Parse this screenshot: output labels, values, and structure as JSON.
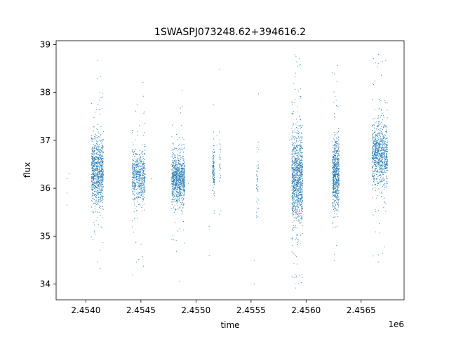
{
  "chart_data": {
    "type": "scatter",
    "title": "1SWASPJ073248.62+394616.2",
    "xlabel": "time",
    "ylabel": "flux",
    "x_offset_label": "1e6",
    "x_scale": 1000000,
    "xlim": [
      2.45373,
      2.45689
    ],
    "ylim": [
      33.67,
      39.08
    ],
    "x_ticks": [
      2.454,
      2.4545,
      2.455,
      2.4555,
      2.456,
      2.4565
    ],
    "x_tick_labels": [
      "2.4540",
      "2.4545",
      "2.4550",
      "2.4555",
      "2.4560",
      "2.4565"
    ],
    "y_ticks": [
      34,
      35,
      36,
      37,
      38,
      39
    ],
    "y_tick_labels": [
      "34",
      "35",
      "36",
      "37",
      "38",
      "39"
    ],
    "grid": false,
    "marker_color": "#1f77b4",
    "series": [
      {
        "name": "",
        "clusters": [
          {
            "x_start": 2.45405,
            "x_end": 2.45416,
            "center": 36.35,
            "spread": 0.35,
            "count": 900
          },
          {
            "x_start": 2.45442,
            "x_end": 2.45454,
            "center": 36.25,
            "spread": 0.28,
            "count": 600
          },
          {
            "x_start": 2.45478,
            "x_end": 2.4549,
            "center": 36.2,
            "spread": 0.25,
            "count": 900
          },
          {
            "x_start": 2.45515,
            "x_end": 2.45517,
            "center": 36.3,
            "spread": 0.25,
            "count": 120
          },
          {
            "x_start": 2.45521,
            "x_end": 2.45523,
            "center": 36.5,
            "spread": 0.3,
            "count": 30
          },
          {
            "x_start": 2.45555,
            "x_end": 2.45557,
            "center": 36.3,
            "spread": 0.4,
            "count": 40
          },
          {
            "x_start": 2.45587,
            "x_end": 2.45597,
            "center": 36.2,
            "spread": 0.5,
            "count": 1100
          },
          {
            "x_start": 2.45624,
            "x_end": 2.4563,
            "center": 36.3,
            "spread": 0.35,
            "count": 700
          },
          {
            "x_start": 2.4566,
            "x_end": 2.45674,
            "center": 36.7,
            "spread": 0.33,
            "count": 900
          }
        ],
        "isolated_points": [
          {
            "x": 2.45383,
            "y": 36.2
          },
          {
            "x": 2.45383,
            "y": 35.65
          },
          {
            "x": 2.45383,
            "y": 35.9
          },
          {
            "x": 2.45385,
            "y": 36.3
          },
          {
            "x": 2.4546,
            "y": 36.2
          },
          {
            "x": 2.45493,
            "y": 36.1
          },
          {
            "x": 2.45512,
            "y": 34.6
          },
          {
            "x": 2.45512,
            "y": 35.2
          },
          {
            "x": 2.45553,
            "y": 34.5
          },
          {
            "x": 2.45553,
            "y": 34.0
          },
          {
            "x": 2.45555,
            "y": 35.5
          },
          {
            "x": 2.45519,
            "y": 36.9
          },
          {
            "x": 2.45519,
            "y": 37.1
          },
          {
            "x": 2.45585,
            "y": 37.0
          }
        ]
      }
    ]
  }
}
